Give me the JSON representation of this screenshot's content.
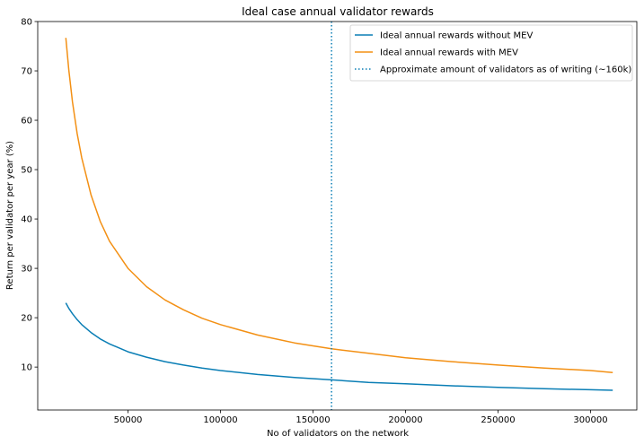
{
  "chart_data": {
    "type": "line",
    "title": "Ideal case annual validator rewards",
    "xlabel": "No of validators on the network",
    "ylabel": "Return per validator per year (%)",
    "xlim": [
      1200,
      325000
    ],
    "ylim": [
      1.3,
      80
    ],
    "xticks": [
      50000,
      100000,
      150000,
      200000,
      250000,
      300000
    ],
    "yticks": [
      10,
      20,
      30,
      40,
      50,
      60,
      70,
      80
    ],
    "grid": false,
    "legend": "top-right",
    "series": [
      {
        "name": "Ideal annual rewards without MEV",
        "color": "#0a7eb5",
        "style": "solid",
        "x": [
          16384,
          18000,
          20000,
          22500,
          25000,
          30000,
          35000,
          40000,
          50000,
          60000,
          70000,
          80000,
          90000,
          100000,
          120000,
          140000,
          160000,
          180000,
          200000,
          225000,
          250000,
          275000,
          300000,
          312000
        ],
        "y": [
          23.0,
          21.9,
          20.8,
          19.6,
          18.6,
          17.0,
          15.7,
          14.7,
          13.1,
          12.0,
          11.1,
          10.4,
          9.8,
          9.3,
          8.5,
          7.9,
          7.4,
          6.9,
          6.6,
          6.2,
          5.9,
          5.6,
          5.4,
          5.3
        ]
      },
      {
        "name": "Ideal annual rewards with MEV",
        "color": "#f39014",
        "style": "solid",
        "x": [
          16384,
          18000,
          20000,
          22500,
          25000,
          30000,
          35000,
          40000,
          50000,
          60000,
          70000,
          80000,
          90000,
          100000,
          120000,
          140000,
          160000,
          180000,
          200000,
          225000,
          250000,
          275000,
          300000,
          312000
        ],
        "y": [
          76.7,
          70.2,
          63.7,
          57.3,
          52.4,
          44.9,
          39.5,
          35.5,
          30.0,
          26.3,
          23.6,
          21.6,
          19.9,
          18.6,
          16.5,
          14.9,
          13.7,
          12.8,
          11.9,
          11.1,
          10.4,
          9.8,
          9.3,
          8.9
        ]
      },
      {
        "name": "Approximate amount of validators as of writing (~160k)",
        "color": "#0a7eb5",
        "style": "dotted",
        "vline_x": 160000
      }
    ]
  }
}
